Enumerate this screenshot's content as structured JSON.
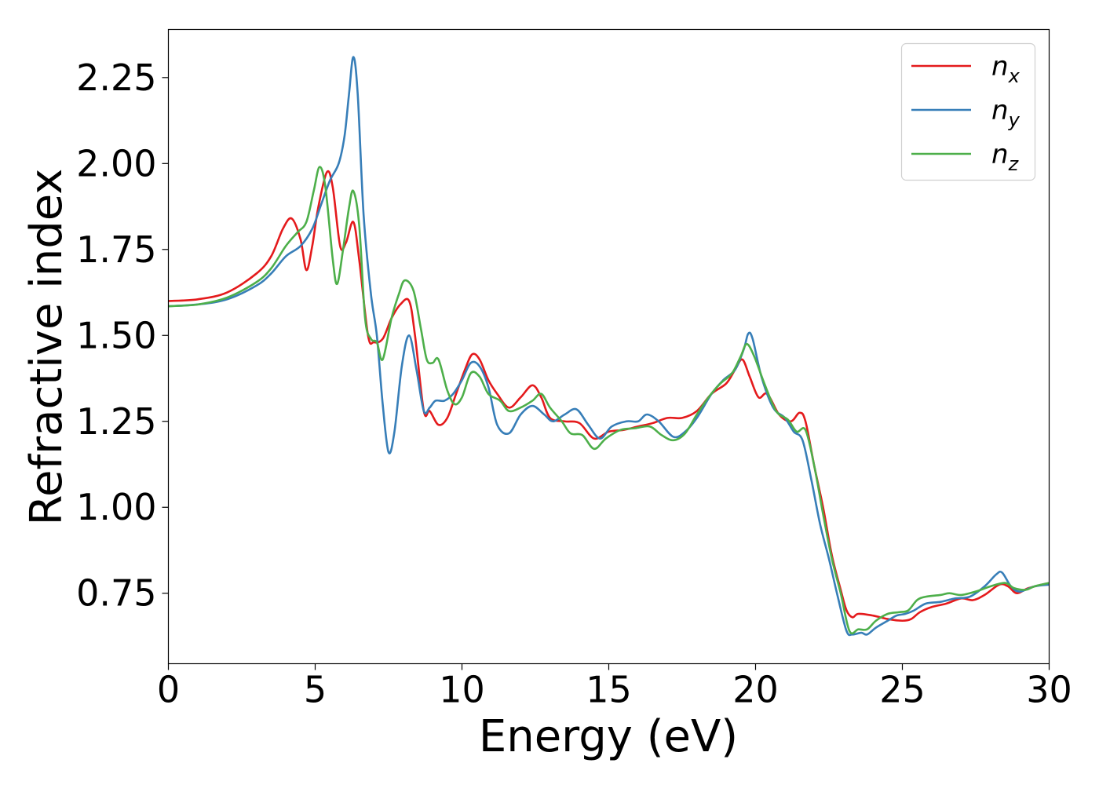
{
  "chart_data": {
    "type": "line",
    "xlabel": "Energy (eV)",
    "ylabel": "Refractive index",
    "xlim": [
      0,
      30
    ],
    "ylim": [
      0.545,
      2.39
    ],
    "xticks": [
      0,
      5,
      10,
      15,
      20,
      25,
      30
    ],
    "xtick_labels": [
      "0",
      "5",
      "10",
      "15",
      "20",
      "25",
      "30"
    ],
    "yticks": [
      0.75,
      1.0,
      1.25,
      1.5,
      1.75,
      2.0,
      2.25
    ],
    "ytick_labels": [
      "0.75",
      "1.00",
      "1.25",
      "1.50",
      "1.75",
      "2.00",
      "2.25"
    ],
    "grid": false,
    "legend_position": "top-right",
    "series": [
      {
        "name": "n_x",
        "legend_base": "n",
        "legend_sub": "x",
        "color": "#e41a1c",
        "points": [
          [
            0,
            1.6
          ],
          [
            1,
            1.605
          ],
          [
            2,
            1.625
          ],
          [
            3,
            1.68
          ],
          [
            3.5,
            1.73
          ],
          [
            3.9,
            1.81
          ],
          [
            4.2,
            1.84
          ],
          [
            4.5,
            1.78
          ],
          [
            4.7,
            1.69
          ],
          [
            4.9,
            1.76
          ],
          [
            5.1,
            1.87
          ],
          [
            5.4,
            1.975
          ],
          [
            5.6,
            1.93
          ],
          [
            5.85,
            1.76
          ],
          [
            6.05,
            1.77
          ],
          [
            6.3,
            1.83
          ],
          [
            6.5,
            1.72
          ],
          [
            6.8,
            1.5
          ],
          [
            7.0,
            1.48
          ],
          [
            7.3,
            1.49
          ],
          [
            7.6,
            1.55
          ],
          [
            7.9,
            1.59
          ],
          [
            8.2,
            1.6
          ],
          [
            8.4,
            1.5
          ],
          [
            8.7,
            1.28
          ],
          [
            8.9,
            1.28
          ],
          [
            9.2,
            1.24
          ],
          [
            9.5,
            1.26
          ],
          [
            9.8,
            1.33
          ],
          [
            10.1,
            1.4
          ],
          [
            10.35,
            1.445
          ],
          [
            10.6,
            1.43
          ],
          [
            10.9,
            1.37
          ],
          [
            11.2,
            1.33
          ],
          [
            11.6,
            1.29
          ],
          [
            12.0,
            1.32
          ],
          [
            12.4,
            1.355
          ],
          [
            12.7,
            1.32
          ],
          [
            13.0,
            1.26
          ],
          [
            13.5,
            1.25
          ],
          [
            14.0,
            1.245
          ],
          [
            14.5,
            1.2
          ],
          [
            15.0,
            1.22
          ],
          [
            15.5,
            1.225
          ],
          [
            16.0,
            1.235
          ],
          [
            16.5,
            1.245
          ],
          [
            17.0,
            1.26
          ],
          [
            17.5,
            1.26
          ],
          [
            18.0,
            1.28
          ],
          [
            18.5,
            1.33
          ],
          [
            19.0,
            1.36
          ],
          [
            19.3,
            1.4
          ],
          [
            19.55,
            1.43
          ],
          [
            19.8,
            1.38
          ],
          [
            20.1,
            1.32
          ],
          [
            20.4,
            1.33
          ],
          [
            20.8,
            1.27
          ],
          [
            21.2,
            1.25
          ],
          [
            21.5,
            1.275
          ],
          [
            21.7,
            1.25
          ],
          [
            22.0,
            1.12
          ],
          [
            22.3,
            1.0
          ],
          [
            22.6,
            0.86
          ],
          [
            22.9,
            0.76
          ],
          [
            23.1,
            0.7
          ],
          [
            23.3,
            0.68
          ],
          [
            23.5,
            0.69
          ],
          [
            24.0,
            0.685
          ],
          [
            24.5,
            0.675
          ],
          [
            25.0,
            0.67
          ],
          [
            25.3,
            0.675
          ],
          [
            25.6,
            0.695
          ],
          [
            26.0,
            0.71
          ],
          [
            26.5,
            0.72
          ],
          [
            27.0,
            0.735
          ],
          [
            27.4,
            0.73
          ],
          [
            27.8,
            0.745
          ],
          [
            28.3,
            0.775
          ],
          [
            28.6,
            0.77
          ],
          [
            28.9,
            0.75
          ],
          [
            29.3,
            0.765
          ],
          [
            30.0,
            0.78
          ]
        ]
      },
      {
        "name": "n_y",
        "legend_base": "n",
        "legend_sub": "y",
        "color": "#377eb8",
        "points": [
          [
            0,
            1.585
          ],
          [
            1,
            1.59
          ],
          [
            2,
            1.605
          ],
          [
            3,
            1.645
          ],
          [
            3.5,
            1.68
          ],
          [
            4.0,
            1.73
          ],
          [
            4.5,
            1.76
          ],
          [
            4.9,
            1.81
          ],
          [
            5.2,
            1.88
          ],
          [
            5.5,
            1.95
          ],
          [
            5.8,
            2.0
          ],
          [
            6.0,
            2.08
          ],
          [
            6.15,
            2.2
          ],
          [
            6.3,
            2.31
          ],
          [
            6.45,
            2.2
          ],
          [
            6.65,
            1.85
          ],
          [
            6.9,
            1.62
          ],
          [
            7.1,
            1.5
          ],
          [
            7.3,
            1.3
          ],
          [
            7.5,
            1.16
          ],
          [
            7.7,
            1.22
          ],
          [
            7.95,
            1.41
          ],
          [
            8.2,
            1.5
          ],
          [
            8.45,
            1.4
          ],
          [
            8.7,
            1.28
          ],
          [
            8.9,
            1.29
          ],
          [
            9.1,
            1.31
          ],
          [
            9.4,
            1.31
          ],
          [
            9.7,
            1.33
          ],
          [
            10.0,
            1.37
          ],
          [
            10.3,
            1.42
          ],
          [
            10.6,
            1.41
          ],
          [
            10.9,
            1.35
          ],
          [
            11.2,
            1.24
          ],
          [
            11.6,
            1.215
          ],
          [
            12.0,
            1.27
          ],
          [
            12.4,
            1.295
          ],
          [
            12.8,
            1.27
          ],
          [
            13.1,
            1.25
          ],
          [
            13.5,
            1.27
          ],
          [
            13.9,
            1.285
          ],
          [
            14.3,
            1.24
          ],
          [
            14.7,
            1.2
          ],
          [
            15.1,
            1.235
          ],
          [
            15.6,
            1.25
          ],
          [
            16.0,
            1.25
          ],
          [
            16.3,
            1.27
          ],
          [
            16.7,
            1.25
          ],
          [
            17.2,
            1.205
          ],
          [
            17.6,
            1.22
          ],
          [
            18.0,
            1.26
          ],
          [
            18.5,
            1.33
          ],
          [
            18.9,
            1.37
          ],
          [
            19.3,
            1.4
          ],
          [
            19.6,
            1.46
          ],
          [
            19.75,
            1.505
          ],
          [
            19.9,
            1.49
          ],
          [
            20.2,
            1.38
          ],
          [
            20.6,
            1.29
          ],
          [
            21.0,
            1.26
          ],
          [
            21.3,
            1.22
          ],
          [
            21.6,
            1.195
          ],
          [
            21.9,
            1.08
          ],
          [
            22.2,
            0.95
          ],
          [
            22.5,
            0.85
          ],
          [
            22.8,
            0.74
          ],
          [
            23.1,
            0.64
          ],
          [
            23.3,
            0.63
          ],
          [
            23.6,
            0.635
          ],
          [
            23.8,
            0.63
          ],
          [
            24.1,
            0.65
          ],
          [
            24.5,
            0.67
          ],
          [
            24.8,
            0.685
          ],
          [
            25.1,
            0.69
          ],
          [
            25.4,
            0.7
          ],
          [
            25.8,
            0.72
          ],
          [
            26.3,
            0.725
          ],
          [
            26.8,
            0.735
          ],
          [
            27.3,
            0.74
          ],
          [
            27.8,
            0.77
          ],
          [
            28.2,
            0.805
          ],
          [
            28.4,
            0.81
          ],
          [
            28.7,
            0.77
          ],
          [
            29.0,
            0.755
          ],
          [
            29.5,
            0.77
          ],
          [
            30.0,
            0.775
          ]
        ]
      },
      {
        "name": "n_z",
        "legend_base": "n",
        "legend_sub": "z",
        "color": "#4daf4a",
        "points": [
          [
            0,
            1.585
          ],
          [
            1,
            1.59
          ],
          [
            2,
            1.61
          ],
          [
            3,
            1.655
          ],
          [
            3.5,
            1.695
          ],
          [
            4.0,
            1.76
          ],
          [
            4.4,
            1.8
          ],
          [
            4.7,
            1.83
          ],
          [
            4.95,
            1.92
          ],
          [
            5.15,
            1.99
          ],
          [
            5.35,
            1.93
          ],
          [
            5.6,
            1.72
          ],
          [
            5.75,
            1.65
          ],
          [
            5.95,
            1.75
          ],
          [
            6.15,
            1.87
          ],
          [
            6.3,
            1.92
          ],
          [
            6.5,
            1.82
          ],
          [
            6.7,
            1.55
          ],
          [
            6.9,
            1.49
          ],
          [
            7.1,
            1.48
          ],
          [
            7.3,
            1.43
          ],
          [
            7.6,
            1.55
          ],
          [
            7.85,
            1.62
          ],
          [
            8.05,
            1.66
          ],
          [
            8.35,
            1.63
          ],
          [
            8.6,
            1.52
          ],
          [
            8.8,
            1.43
          ],
          [
            9.0,
            1.42
          ],
          [
            9.2,
            1.43
          ],
          [
            9.5,
            1.34
          ],
          [
            9.75,
            1.3
          ],
          [
            10.0,
            1.32
          ],
          [
            10.3,
            1.39
          ],
          [
            10.6,
            1.38
          ],
          [
            10.9,
            1.33
          ],
          [
            11.3,
            1.31
          ],
          [
            11.6,
            1.28
          ],
          [
            12.0,
            1.29
          ],
          [
            12.4,
            1.31
          ],
          [
            12.7,
            1.33
          ],
          [
            13.0,
            1.29
          ],
          [
            13.4,
            1.25
          ],
          [
            13.7,
            1.215
          ],
          [
            14.1,
            1.21
          ],
          [
            14.5,
            1.17
          ],
          [
            14.9,
            1.2
          ],
          [
            15.4,
            1.225
          ],
          [
            15.9,
            1.23
          ],
          [
            16.4,
            1.235
          ],
          [
            16.8,
            1.21
          ],
          [
            17.2,
            1.195
          ],
          [
            17.6,
            1.215
          ],
          [
            18.0,
            1.27
          ],
          [
            18.4,
            1.32
          ],
          [
            18.8,
            1.36
          ],
          [
            19.2,
            1.39
          ],
          [
            19.5,
            1.44
          ],
          [
            19.7,
            1.475
          ],
          [
            19.95,
            1.44
          ],
          [
            20.3,
            1.36
          ],
          [
            20.7,
            1.28
          ],
          [
            21.1,
            1.255
          ],
          [
            21.4,
            1.22
          ],
          [
            21.7,
            1.225
          ],
          [
            22.0,
            1.12
          ],
          [
            22.3,
            0.98
          ],
          [
            22.6,
            0.85
          ],
          [
            22.9,
            0.75
          ],
          [
            23.2,
            0.64
          ],
          [
            23.5,
            0.645
          ],
          [
            23.8,
            0.645
          ],
          [
            24.1,
            0.67
          ],
          [
            24.5,
            0.69
          ],
          [
            24.9,
            0.695
          ],
          [
            25.2,
            0.7
          ],
          [
            25.5,
            0.73
          ],
          [
            25.8,
            0.74
          ],
          [
            26.3,
            0.745
          ],
          [
            26.6,
            0.75
          ],
          [
            27.0,
            0.745
          ],
          [
            27.5,
            0.755
          ],
          [
            28.0,
            0.77
          ],
          [
            28.5,
            0.78
          ],
          [
            28.8,
            0.765
          ],
          [
            29.2,
            0.76
          ],
          [
            29.5,
            0.77
          ],
          [
            30.0,
            0.78
          ]
        ]
      }
    ]
  }
}
